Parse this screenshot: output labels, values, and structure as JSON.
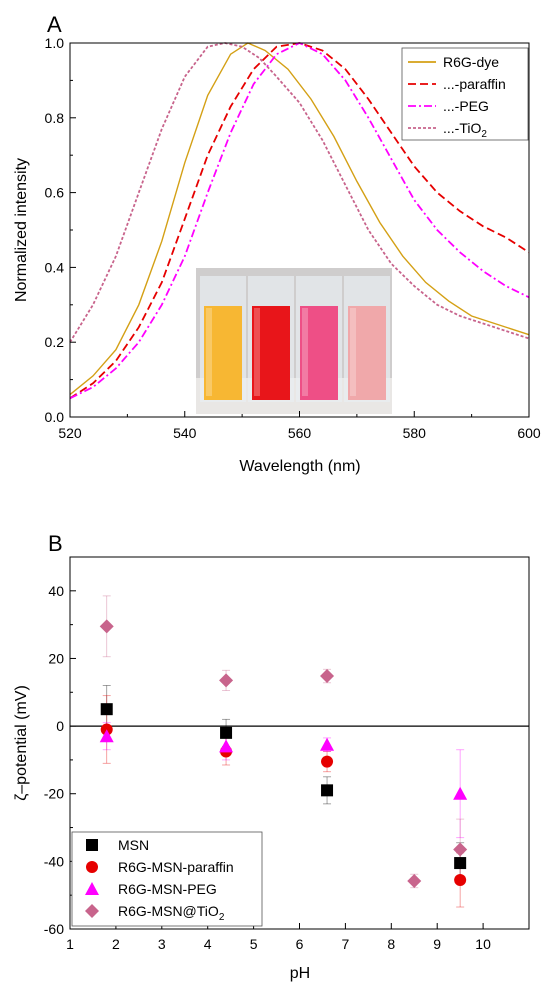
{
  "panels": [
    {
      "id": "A",
      "label": "A"
    },
    {
      "id": "B",
      "label": "B"
    }
  ],
  "colors": {
    "gold": "#d4a015",
    "red": "#e60000",
    "magenta": "#ff00ff",
    "mauve": "#c8648c",
    "black": "#000000"
  },
  "inset_photo": {
    "description": "photograph of four cuvettes",
    "vial_colors": [
      "#f7b733",
      "#e8151a",
      "#ee4f86",
      "#f0a8aa"
    ]
  },
  "chart_data": [
    {
      "type": "line",
      "panel": "A",
      "xlabel": "Wavelength (nm)",
      "ylabel": "Normalized intensity",
      "xlim": [
        520,
        600
      ],
      "ylim": [
        0.0,
        1.0
      ],
      "xticks": [
        520,
        540,
        560,
        580,
        600
      ],
      "yticks": [
        0.0,
        0.2,
        0.4,
        0.6,
        0.8,
        1.0
      ],
      "xtick_labels": [
        "520",
        "540",
        "560",
        "580",
        "600"
      ],
      "ytick_labels": [
        "0.0",
        "0.2",
        "0.4",
        "0.6",
        "0.8",
        "1.0"
      ],
      "legend_position": "top-right",
      "grid": false,
      "series": [
        {
          "name": "R6G-dye",
          "color": "#d4a015",
          "dash": "solid",
          "x": [
            520,
            524,
            528,
            532,
            536,
            540,
            544,
            548,
            551,
            554,
            558,
            562,
            566,
            570,
            574,
            578,
            582,
            586,
            590,
            594,
            600
          ],
          "y": [
            0.06,
            0.11,
            0.18,
            0.3,
            0.47,
            0.68,
            0.86,
            0.97,
            1.0,
            0.98,
            0.93,
            0.85,
            0.75,
            0.63,
            0.52,
            0.43,
            0.36,
            0.31,
            0.27,
            0.25,
            0.22
          ]
        },
        {
          "name": "...-paraffin",
          "color": "#e60000",
          "dash": "dash",
          "x": [
            520,
            524,
            528,
            532,
            536,
            540,
            544,
            548,
            552,
            556,
            560,
            564,
            568,
            572,
            576,
            580,
            584,
            588,
            592,
            596,
            600
          ],
          "y": [
            0.05,
            0.09,
            0.15,
            0.24,
            0.36,
            0.53,
            0.7,
            0.83,
            0.93,
            0.99,
            1.0,
            0.98,
            0.93,
            0.85,
            0.76,
            0.67,
            0.6,
            0.55,
            0.51,
            0.48,
            0.44
          ]
        },
        {
          "name": "...-PEG",
          "color": "#ff00ff",
          "dash": "dashdot",
          "x": [
            520,
            524,
            528,
            532,
            536,
            540,
            544,
            548,
            552,
            556,
            560,
            564,
            568,
            572,
            576,
            580,
            584,
            588,
            592,
            596,
            600
          ],
          "y": [
            0.05,
            0.08,
            0.13,
            0.2,
            0.3,
            0.43,
            0.6,
            0.76,
            0.89,
            0.97,
            1.0,
            0.97,
            0.9,
            0.8,
            0.69,
            0.58,
            0.5,
            0.44,
            0.39,
            0.35,
            0.32
          ]
        },
        {
          "name": "...-TiO2",
          "color": "#c8648c",
          "dash": "dot",
          "x": [
            520,
            524,
            528,
            532,
            536,
            540,
            544,
            547,
            550,
            553,
            556,
            560,
            564,
            568,
            572,
            576,
            580,
            584,
            588,
            592,
            596,
            600
          ],
          "y": [
            0.2,
            0.3,
            0.43,
            0.6,
            0.77,
            0.91,
            0.99,
            1.0,
            0.99,
            0.96,
            0.91,
            0.84,
            0.74,
            0.62,
            0.5,
            0.41,
            0.35,
            0.3,
            0.27,
            0.25,
            0.23,
            0.21
          ]
        }
      ]
    },
    {
      "type": "scatter",
      "panel": "B",
      "xlabel": "pH",
      "ylabel": "ζ–potential (mV)",
      "xlim": [
        1,
        11
      ],
      "ylim": [
        -60,
        50
      ],
      "xticks": [
        1,
        2,
        3,
        4,
        5,
        6,
        7,
        8,
        9,
        10
      ],
      "yticks": [
        -60,
        -40,
        -20,
        0,
        20,
        40
      ],
      "xtick_labels": [
        "1",
        "2",
        "3",
        "4",
        "5",
        "6",
        "7",
        "8",
        "9",
        "10"
      ],
      "ytick_labels": [
        "-60",
        "-40",
        "-20",
        "0",
        "20",
        "40"
      ],
      "zero_line": 0,
      "legend_position": "bottom-left",
      "grid": false,
      "series": [
        {
          "name": "MSN",
          "color": "#000000",
          "marker": "square",
          "points": [
            {
              "x": 1.8,
              "y": 5,
              "err": 7
            },
            {
              "x": 4.4,
              "y": -2,
              "err": 4
            },
            {
              "x": 6.6,
              "y": -19,
              "err": 4
            },
            {
              "x": 9.5,
              "y": -40.5,
              "err": 6
            }
          ]
        },
        {
          "name": "R6G-MSN-paraffin",
          "color": "#e60000",
          "marker": "circle",
          "points": [
            {
              "x": 1.8,
              "y": -1,
              "err": 10
            },
            {
              "x": 4.4,
              "y": -7.5,
              "err": 4
            },
            {
              "x": 6.6,
              "y": -10.5,
              "err": 3
            },
            {
              "x": 9.5,
              "y": -45.5,
              "err": 8
            }
          ]
        },
        {
          "name": "R6G-MSN-PEG",
          "color": "#ff00ff",
          "marker": "triangle",
          "points": [
            {
              "x": 1.8,
              "y": -3,
              "err": 4
            },
            {
              "x": 4.4,
              "y": -6,
              "err": 4
            },
            {
              "x": 6.6,
              "y": -5.5,
              "err": 2
            },
            {
              "x": 9.5,
              "y": -20,
              "err": 13
            }
          ]
        },
        {
          "name": "R6G-MSN@TiO2",
          "color": "#c8648c",
          "marker": "diamond",
          "points": [
            {
              "x": 1.8,
              "y": 29.5,
              "err": 9
            },
            {
              "x": 4.4,
              "y": 13.5,
              "err": 3
            },
            {
              "x": 6.6,
              "y": 14.8,
              "err": 2
            },
            {
              "x": 8.5,
              "y": -45.8,
              "err": 2
            },
            {
              "x": 9.5,
              "y": -36.5,
              "err": 9
            }
          ]
        }
      ]
    }
  ]
}
